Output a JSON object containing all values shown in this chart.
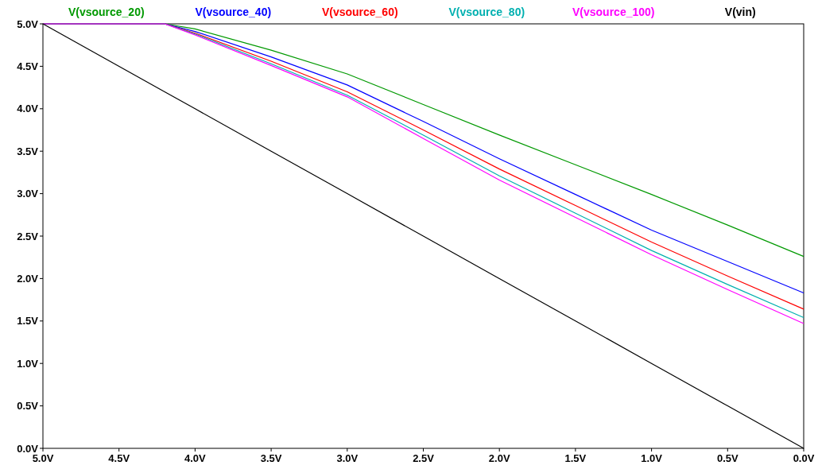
{
  "chart_data": {
    "type": "line",
    "legend": "top",
    "grid": false,
    "xlim": [
      5,
      0
    ],
    "ylim": [
      0,
      5
    ],
    "xticks": [
      {
        "value": 5,
        "label": "5.0V"
      },
      {
        "value": 4.5,
        "label": "4.5V"
      },
      {
        "value": 4,
        "label": "4.0V"
      },
      {
        "value": 3.5,
        "label": "3.5V"
      },
      {
        "value": 3,
        "label": "3.0V"
      },
      {
        "value": 2.5,
        "label": "2.5V"
      },
      {
        "value": 2,
        "label": "2.0V"
      },
      {
        "value": 1.5,
        "label": "1.5V"
      },
      {
        "value": 1,
        "label": "1.0V"
      },
      {
        "value": 0.5,
        "label": "0.5V"
      },
      {
        "value": 0,
        "label": "0.0V"
      }
    ],
    "yticks": [
      {
        "value": 0,
        "label": "0.0V"
      },
      {
        "value": 0.5,
        "label": "0.5V"
      },
      {
        "value": 1,
        "label": "1.0V"
      },
      {
        "value": 1.5,
        "label": "1.5V"
      },
      {
        "value": 2,
        "label": "2.0V"
      },
      {
        "value": 2.5,
        "label": "2.5V"
      },
      {
        "value": 3,
        "label": "3.0V"
      },
      {
        "value": 3.5,
        "label": "3.5V"
      },
      {
        "value": 4,
        "label": "4.0V"
      },
      {
        "value": 4.5,
        "label": "4.5V"
      },
      {
        "value": 5,
        "label": "5.0V"
      }
    ],
    "x": [
      5,
      4.2,
      4,
      3.5,
      3,
      2.5,
      2,
      1.5,
      1,
      0.5,
      0
    ],
    "series": [
      {
        "name": "V(vsource_20)",
        "color": "#009900",
        "values": [
          5,
          5,
          4.94,
          4.69,
          4.41,
          4.05,
          3.69,
          3.34,
          2.99,
          2.63,
          2.26
        ]
      },
      {
        "name": "V(vsource_40)",
        "color": "#0000ff",
        "values": [
          5,
          5,
          4.91,
          4.61,
          4.28,
          3.85,
          3.41,
          2.99,
          2.57,
          2.2,
          1.83
        ]
      },
      {
        "name": "V(vsource_60)",
        "color": "#ff0000",
        "values": [
          5,
          5,
          4.89,
          4.56,
          4.2,
          3.75,
          3.29,
          2.86,
          2.43,
          2.03,
          1.64
        ]
      },
      {
        "name": "V(vsource_80)",
        "color": "#00b0b0",
        "values": [
          5,
          5,
          4.88,
          4.53,
          4.16,
          3.69,
          3.21,
          2.77,
          2.33,
          1.93,
          1.54
        ]
      },
      {
        "name": "V(vsource_100)",
        "color": "#ff00ff",
        "values": [
          5,
          5,
          4.87,
          4.51,
          4.14,
          3.65,
          3.16,
          2.72,
          2.28,
          1.87,
          1.47
        ]
      },
      {
        "name": "V(vin)",
        "color": "#000000",
        "values": [
          5,
          4.2,
          4,
          3.5,
          3,
          2.5,
          2,
          1.5,
          1,
          0.5,
          0
        ]
      }
    ]
  }
}
